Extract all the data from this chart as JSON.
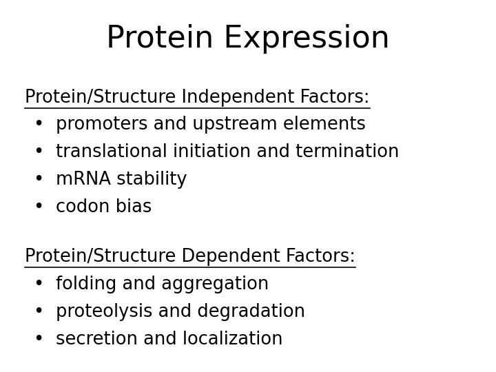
{
  "title": "Protein Expression",
  "title_fontsize": 32,
  "background_color": "#ffffff",
  "text_color": "#000000",
  "section1_header": "Protein/Structure Independent Factors:",
  "section1_bullets": [
    "promoters and upstream elements",
    "translational initiation and termination",
    "mRNA stability",
    "codon bias"
  ],
  "section2_header": "Protein/Structure Dependent Factors:",
  "section2_bullets": [
    "folding and aggregation",
    "proteolysis and degradation",
    "secretion and localization"
  ],
  "header_fontsize": 18.5,
  "bullet_fontsize": 18.5,
  "bullet_char": "•"
}
